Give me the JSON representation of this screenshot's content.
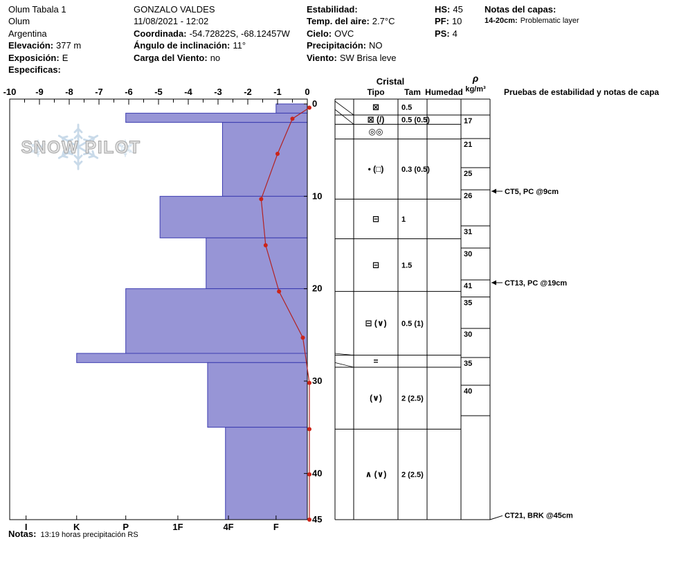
{
  "colors": {
    "bar_fill": "#9795d6",
    "bar_stroke": "#3b3bb0",
    "temp_line": "#b22222",
    "temp_marker": "#cc2418",
    "logo_text": "#e2e2e2",
    "logo_outline": "#9e9e9e",
    "logo_flake": "#bcd2e4"
  },
  "header": {
    "pit_name": "Olum Tabala 1",
    "range": "Olum",
    "region": "Argentina",
    "elevation": {
      "label": "Elevación:",
      "value": "377 m"
    },
    "aspect": {
      "label": "Exposición:",
      "value": "E"
    },
    "specifics": {
      "label": "Especificas:",
      "value": ""
    },
    "observer": "GONZALO VALDES",
    "datetime": "11/08/2021 - 12:02",
    "coordinates": {
      "label": "Coordinada:",
      "value": "-54.72822S, -68.12457W"
    },
    "slope_angle": {
      "label": "Ángulo de inclinación:",
      "value": "11°"
    },
    "wind_loading": {
      "label": "Carga del Viento:",
      "value": "no"
    },
    "stability": {
      "label": "Estabilidad:",
      "value": ""
    },
    "air_temp": {
      "label": "Temp. del aire:",
      "value": "2.7°C"
    },
    "sky": {
      "label": "Cielo:",
      "value": "OVC"
    },
    "precip": {
      "label": "Precipitación:",
      "value": "NO"
    },
    "wind": {
      "label": "Viento:",
      "value": "SW Brisa leve"
    },
    "hs": {
      "label": "HS:",
      "value": "45"
    },
    "pf": {
      "label": "PF:",
      "value": "10"
    },
    "ps": {
      "label": "PS:",
      "value": "4"
    },
    "layer_notes": {
      "label": "Notas del capas:",
      "range": "14-20cm:",
      "text": "Problematic layer"
    }
  },
  "chart_data": {
    "type": "snow-profile",
    "temp_axis": {
      "unit": "°C",
      "min": -10,
      "max": 0,
      "ticks": [
        -10,
        -9,
        -8,
        -7,
        -6,
        -5,
        -4,
        -3,
        -2,
        -1,
        0
      ]
    },
    "depth_axis": {
      "unit": "cm",
      "max": 45,
      "tick_labels": [
        0,
        10,
        20,
        30,
        40,
        45
      ]
    },
    "hardness_axis": {
      "labels": [
        "I",
        "K",
        "P",
        "1F",
        "4F",
        "F"
      ],
      "axis_positions": [
        -9.45,
        -7.75,
        -6.1,
        -4.35,
        -2.65,
        -1.05
      ]
    },
    "layers": [
      {
        "from_cm": 0,
        "to_cm": 1,
        "hardness": "F",
        "axis_value": -1.05
      },
      {
        "from_cm": 1,
        "to_cm": 2,
        "hardness": "P",
        "axis_value": -6.1
      },
      {
        "from_cm": 2,
        "to_cm": 10,
        "hardness": "4F",
        "axis_value": -2.85
      },
      {
        "from_cm": 10,
        "to_cm": 14.5,
        "hardness": "1F-P",
        "axis_value": -4.95
      },
      {
        "from_cm": 14.5,
        "to_cm": 20,
        "hardness": "4F-1F",
        "axis_value": -3.4
      },
      {
        "from_cm": 20,
        "to_cm": 27,
        "hardness": "P",
        "axis_value": -6.1
      },
      {
        "from_cm": 27,
        "to_cm": 28,
        "hardness": "K",
        "axis_value": -7.75
      },
      {
        "from_cm": 28,
        "to_cm": 35,
        "hardness": "4F-1F",
        "axis_value": -3.35
      },
      {
        "from_cm": 35,
        "to_cm": 45,
        "hardness": "4F",
        "axis_value": -2.75
      }
    ],
    "temperature_profile": [
      {
        "depth_cm": 0.4,
        "temp_c": 0
      },
      {
        "depth_cm": 1.6,
        "temp_c": -0.5
      },
      {
        "depth_cm": 5.4,
        "temp_c": -1.0
      },
      {
        "depth_cm": 10.3,
        "temp_c": -1.55
      },
      {
        "depth_cm": 15.3,
        "temp_c": -1.4
      },
      {
        "depth_cm": 20.3,
        "temp_c": -0.95
      },
      {
        "depth_cm": 25.3,
        "temp_c": -0.15
      },
      {
        "depth_cm": 30.2,
        "temp_c": 0
      },
      {
        "depth_cm": 35.2,
        "temp_c": 0
      },
      {
        "depth_cm": 40.1,
        "temp_c": 0
      },
      {
        "depth_cm": 45,
        "temp_c": 0
      }
    ],
    "grain_rows": [
      {
        "from_cm": 0,
        "to_cm": 1.2,
        "grain_symbol": "⊠",
        "size_mm": "0.5"
      },
      {
        "from_cm": 1.2,
        "to_cm": 2.2,
        "grain_symbol": "⊠ (/)",
        "size_mm": "0.5 (0.5)"
      },
      {
        "from_cm": 2.2,
        "to_cm": 3.8,
        "grain_symbol": "◎◎",
        "size_mm": ""
      },
      {
        "from_cm": 3.8,
        "to_cm": 10.3,
        "grain_symbol": "• (□)",
        "size_mm": "0.3 (0.5)"
      },
      {
        "from_cm": 10.3,
        "to_cm": 14.6,
        "grain_symbol": "⊟",
        "size_mm": "1"
      },
      {
        "from_cm": 14.6,
        "to_cm": 20.3,
        "grain_symbol": "⊟",
        "size_mm": "1.5"
      },
      {
        "from_cm": 20.3,
        "to_cm": 27.2,
        "grain_symbol": "⊟ (∨)",
        "size_mm": "0.5 (1)"
      },
      {
        "from_cm": 27.2,
        "to_cm": 28.5,
        "grain_symbol": "=",
        "size_mm": ""
      },
      {
        "from_cm": 28.5,
        "to_cm": 35.2,
        "grain_symbol": "(∨)",
        "size_mm": "2 (2.5)"
      },
      {
        "from_cm": 35.2,
        "to_cm": 45,
        "grain_symbol": "∧ (∨)",
        "size_mm": "2 (2.5)"
      }
    ],
    "density": {
      "boundaries_cm": [
        1.2,
        3.75,
        6.9,
        9.3,
        13.2,
        15.6,
        19.05,
        20.9,
        24.3,
        27.45,
        30.45,
        33.75
      ],
      "values": [
        17,
        21,
        25,
        26,
        31,
        30,
        41,
        35,
        30,
        35,
        40
      ]
    },
    "tests": [
      {
        "depth_cm": 9.45,
        "label": "CT5, PC @9cm",
        "connector": "arrow"
      },
      {
        "depth_cm": 19.35,
        "label": "CT13, PC @19cm",
        "connector": "arrow"
      },
      {
        "depth_cm": 44.5,
        "label": "CT21, BRK @45cm",
        "connector": "diagonal"
      }
    ],
    "row_connectors": [
      {
        "from_cm": -0.3,
        "to_cm": 1.2
      },
      {
        "from_cm": 0.6,
        "to_cm": 2.2
      },
      {
        "from_cm": 27.0,
        "to_cm": 27.2
      },
      {
        "from_cm": 28.0,
        "to_cm": 28.5
      }
    ],
    "table_headers": {
      "cristal": "Cristal",
      "tipo": "Tipo",
      "tam": "Tam",
      "humedad": "Humedad",
      "rho": "ρ",
      "rho_unit": "kg/m³",
      "tests": "Pruebas de estabilidad y notas de capa"
    },
    "logo_text": "SNOW PILOT"
  },
  "footer": {
    "label": "Notas:",
    "text": "13:19 horas precipitación RS"
  }
}
